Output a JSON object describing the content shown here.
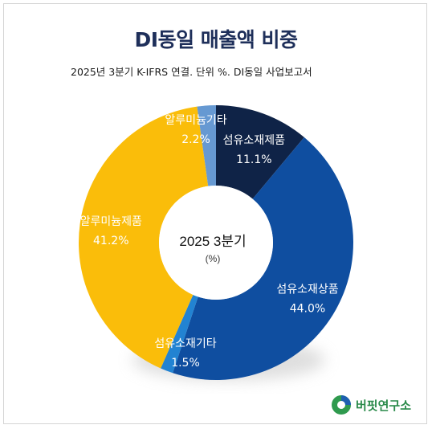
{
  "header": {
    "title": "DI동일 매출액 비중",
    "subtitle": "2025년 3분기 K-IFRS 연결. 단위 %. DI동일 사업보고서"
  },
  "chart_data": {
    "type": "pie",
    "variant": "donut",
    "title": "DI동일 매출액 비중",
    "subtitle": "2025년 3분기 K-IFRS 연결. 단위 %. DI동일 사업보고서",
    "center_label": "2025 3분기",
    "center_unit": "(%)",
    "unit": "%",
    "slices": [
      {
        "label": "섬유소재제품",
        "value": 11.1,
        "display": "11.1%",
        "color": "#0f2347",
        "label_color": "#ffffff"
      },
      {
        "label": "섬유소재상품",
        "value": 44.0,
        "display": "44.0%",
        "color": "#0f4ea0",
        "label_color": "#ffffff"
      },
      {
        "label": "섬유소재기타",
        "value": 1.5,
        "display": "1.5%",
        "color": "#2283d2",
        "label_color": "#ffffff"
      },
      {
        "label": "알루미늄제품",
        "value": 41.2,
        "display": "41.2%",
        "color": "#fabd0a",
        "label_color": "#ffffff"
      },
      {
        "label": "알루미늄기타",
        "value": 2.2,
        "display": "2.2%",
        "color": "#6699d2",
        "label_color": "#ffffff"
      }
    ]
  },
  "brand": {
    "name": "버핏연구소",
    "logo_icon": "buffett-lab-logo-icon"
  }
}
